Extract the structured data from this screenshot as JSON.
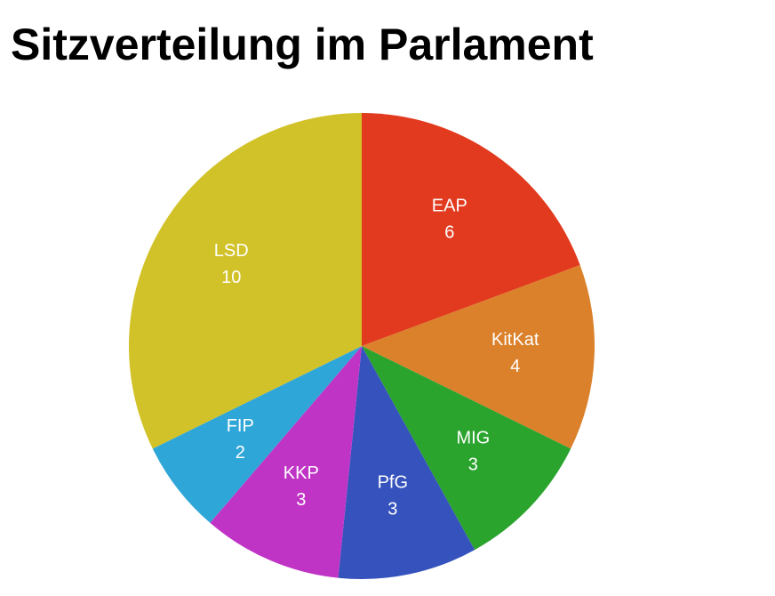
{
  "chart_data": {
    "type": "pie",
    "title": "Sitzverteilung im Parlament",
    "categories": [
      "EAP",
      "KitKat",
      "MIG",
      "PfG",
      "KKP",
      "FIP",
      "LSD"
    ],
    "values": [
      6,
      4,
      3,
      3,
      3,
      2,
      10
    ],
    "colors": [
      "#e23a1e",
      "#db812b",
      "#2ba42e",
      "#3653bd",
      "#c034c5",
      "#2fa6d8",
      "#d2c229"
    ]
  }
}
